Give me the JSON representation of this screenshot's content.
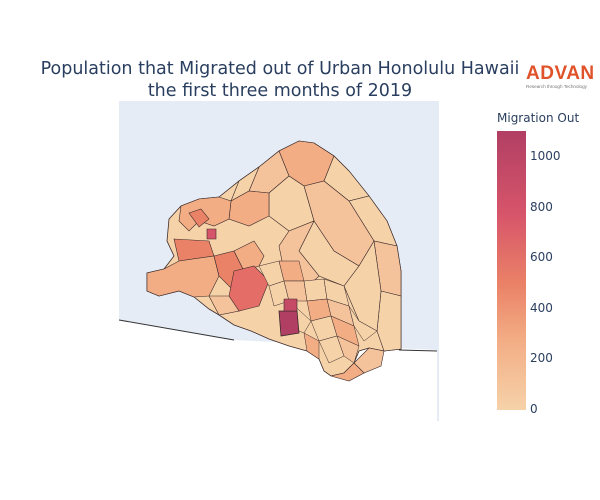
{
  "title": {
    "line1": "Population that Migrated out of Urban Honolulu Hawaii",
    "line2": "the first three months of 2019"
  },
  "logo": {
    "name": "ADVAN",
    "tagline": "Research through Technology"
  },
  "colorbar": {
    "title": "Migration Out",
    "ticks": [
      "1000",
      "800",
      "600",
      "400",
      "200",
      "0"
    ],
    "range": [
      0,
      1100
    ],
    "colors": [
      "#f6d2a9",
      "#f3ad85",
      "#ea8267",
      "#d7556a",
      "#b13f64"
    ]
  },
  "map": {
    "land_color": "#e5ecf6",
    "border_color": "#3a2a2a",
    "default_fill": "#f6d2a9"
  }
}
